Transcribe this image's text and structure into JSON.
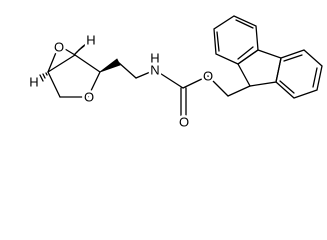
{
  "atoms": [
    {
      "label": "O"
    },
    {
      "label": "H"
    },
    {
      "label": "H"
    },
    {
      "label": "O"
    },
    {
      "label": "N"
    },
    {
      "label": "H"
    },
    {
      "label": "O"
    },
    {
      "label": "O"
    }
  ]
}
